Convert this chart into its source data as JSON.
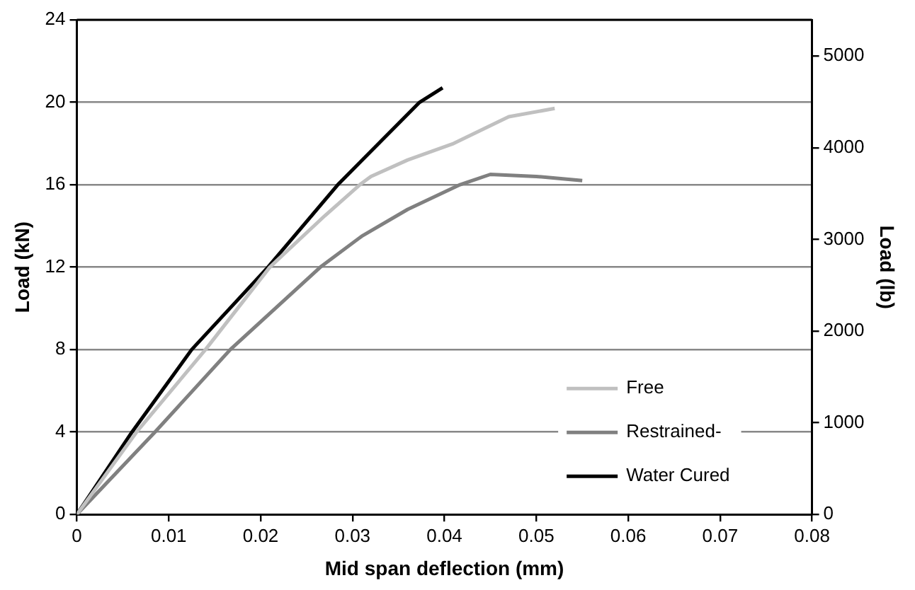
{
  "chart_data": {
    "type": "line",
    "xlabel": "Mid span deflection (mm)",
    "ylabel": "Load (kN)",
    "y2label": "Load (lb)",
    "xlim": [
      0,
      0.08
    ],
    "xticks": [
      0,
      0.01,
      0.02,
      0.03,
      0.04,
      0.05,
      0.06,
      0.07,
      0.08
    ],
    "ylim": [
      0,
      24
    ],
    "yticks": [
      0,
      4,
      8,
      12,
      16,
      20,
      24
    ],
    "y2lim": [
      0,
      5395
    ],
    "y2ticks": [
      0,
      1000,
      2000,
      3000,
      4000,
      5000
    ],
    "grid": "y",
    "legend": "bottom right",
    "marker": "none",
    "line_style": "solid",
    "series": [
      {
        "name": "Free",
        "color": "#c0c0c0",
        "x": [
          0,
          0.0065,
          0.014,
          0.021,
          0.027,
          0.0308,
          0.032,
          0.036,
          0.041,
          0.047,
          0.052
        ],
        "values": [
          0,
          4,
          8,
          12,
          14.5,
          16,
          16.4,
          17.2,
          18,
          19.3,
          19.7
        ]
      },
      {
        "name": "Restrained-",
        "color": "#808080",
        "x": [
          0,
          0.0085,
          0.0167,
          0.0265,
          0.031,
          0.036,
          0.0417,
          0.045,
          0.05,
          0.055
        ],
        "values": [
          0,
          4,
          8,
          12,
          13.5,
          14.8,
          16,
          16.5,
          16.4,
          16.2
        ]
      },
      {
        "name": "Water Cured",
        "color": "#000000",
        "x": [
          0,
          0.006,
          0.0125,
          0.0208,
          0.0284,
          0.0373,
          0.0398
        ],
        "values": [
          0,
          4,
          8,
          12,
          16,
          20,
          20.7
        ]
      }
    ]
  }
}
